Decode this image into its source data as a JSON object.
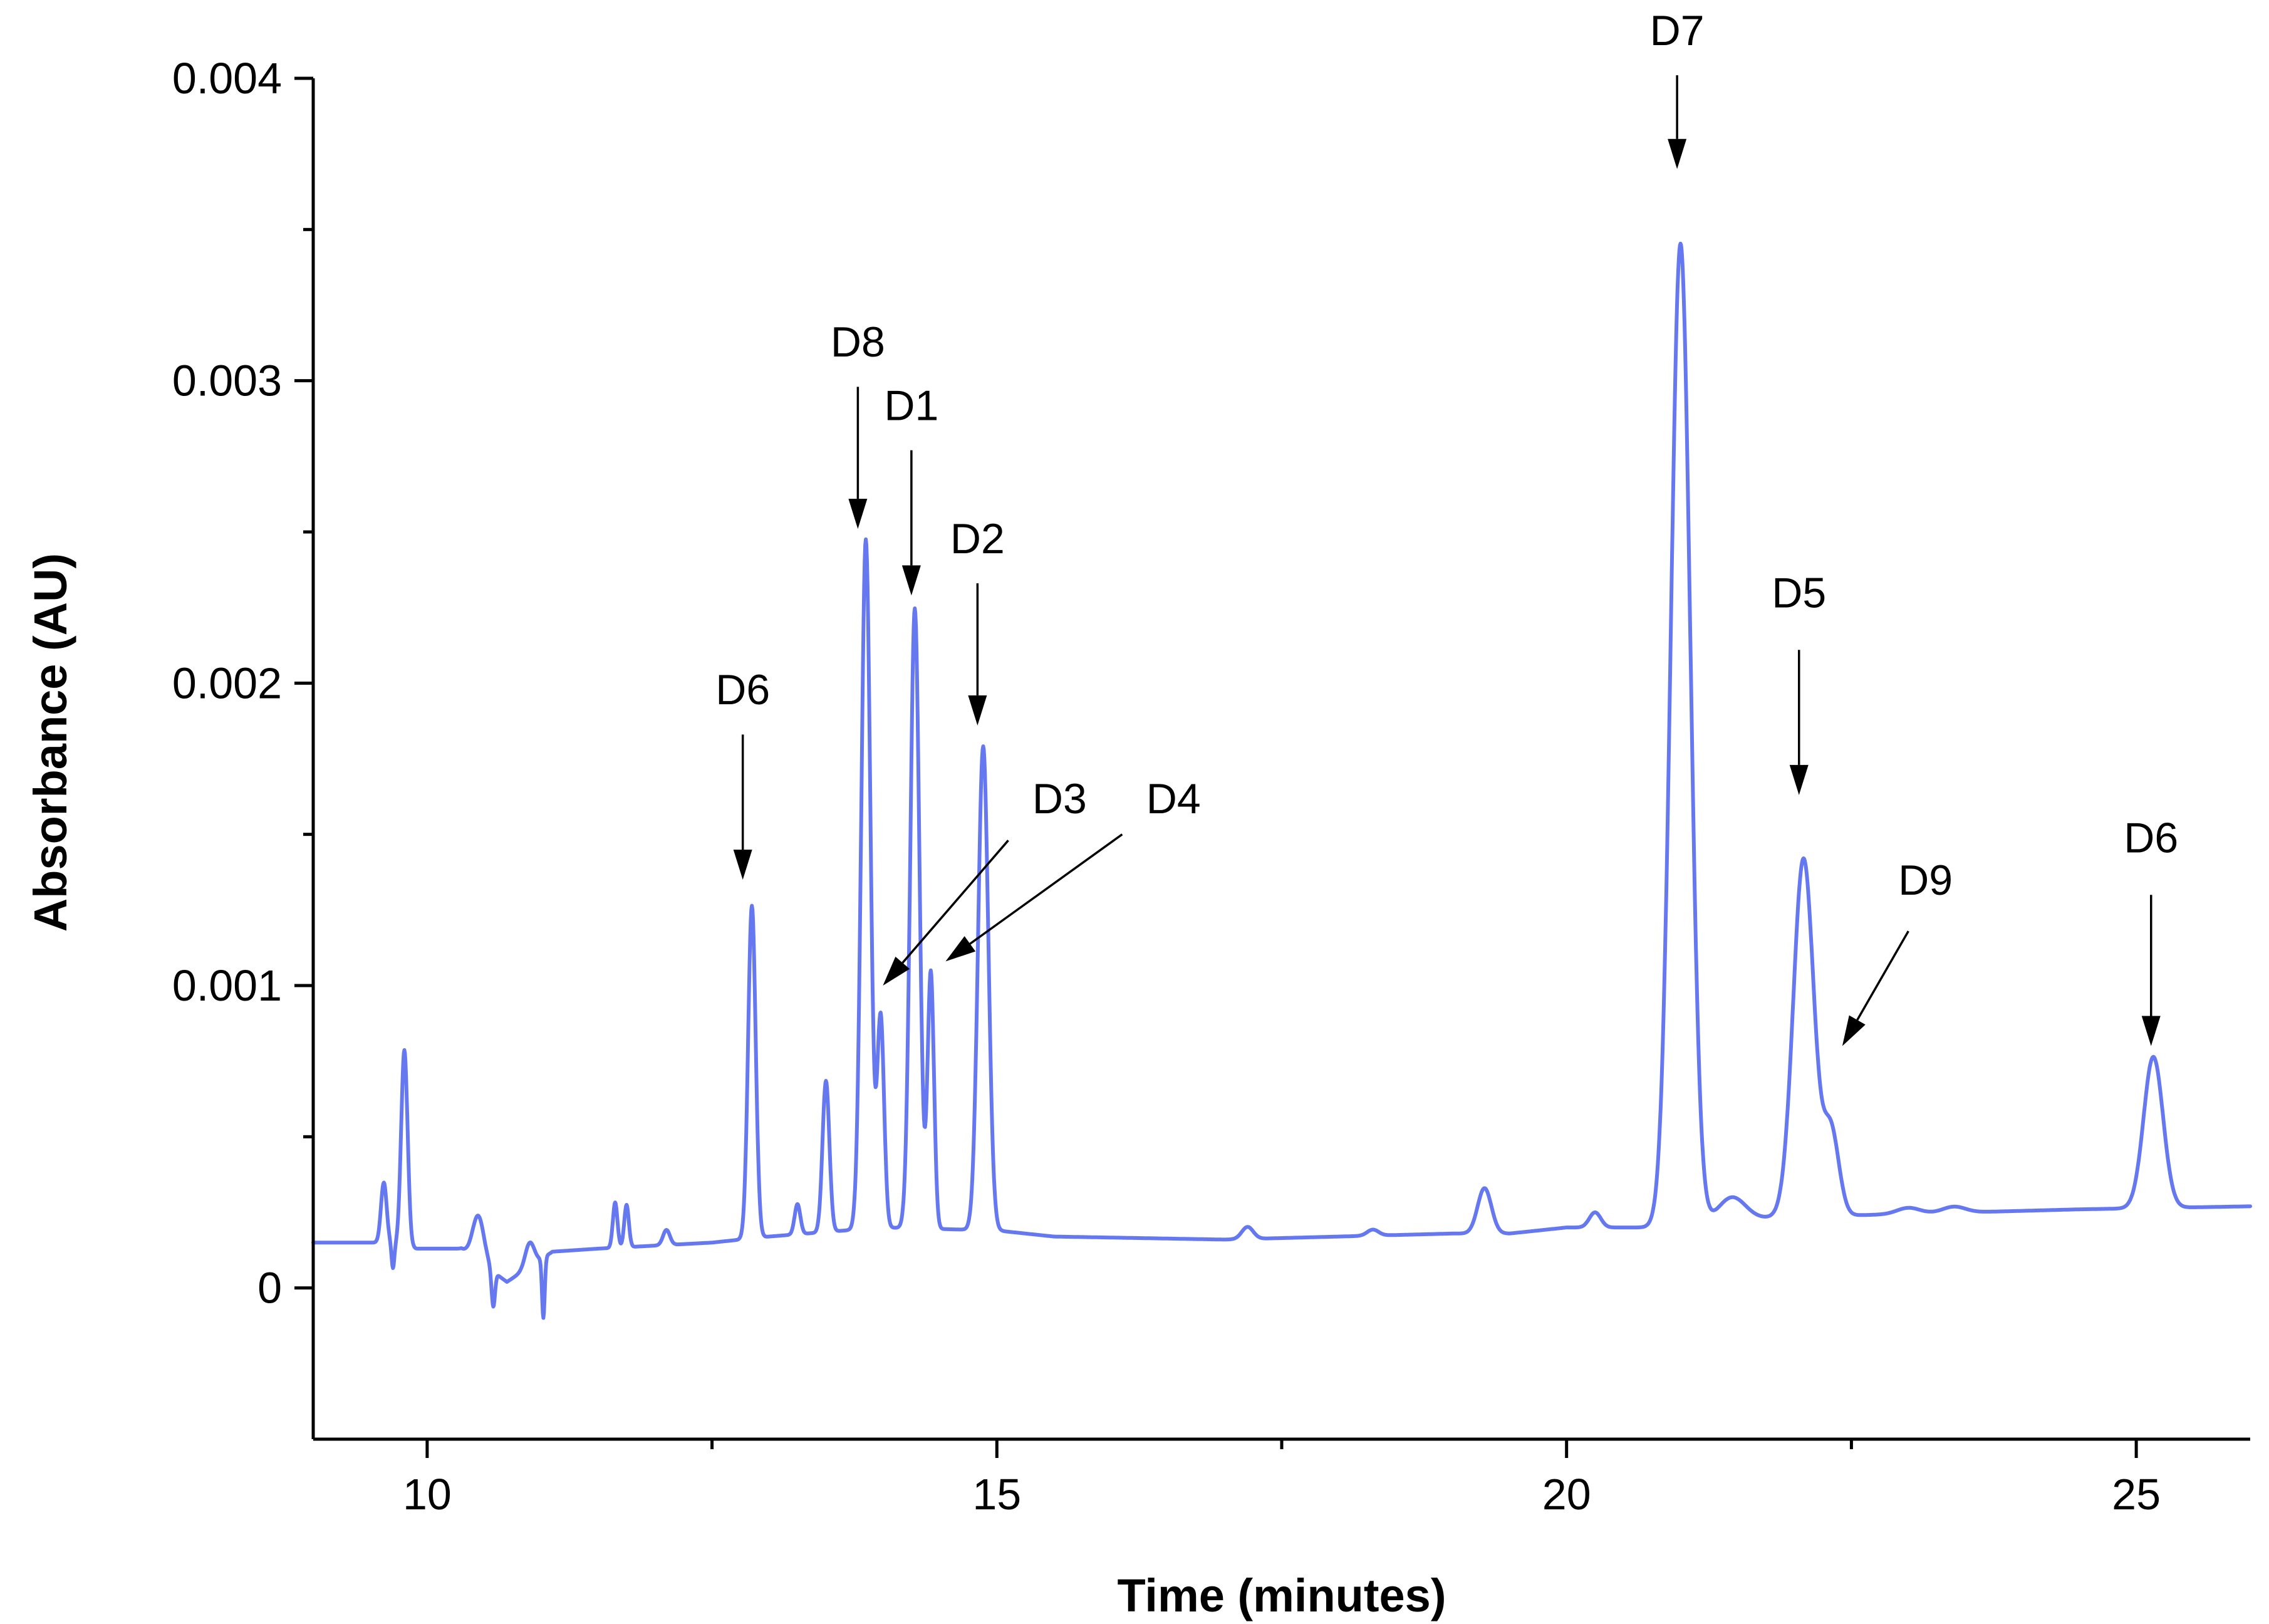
{
  "chart_data": {
    "type": "line",
    "xlabel": "Time (minutes)",
    "ylabel": "Absorbance (AU)",
    "xlim": [
      9,
      26
    ],
    "ylim": [
      -0.0005,
      0.004
    ],
    "x_ticks": [
      10,
      15,
      20,
      25
    ],
    "x_minor_ticks": [
      12.5,
      17.5,
      22.5
    ],
    "y_ticks": [
      0,
      0.001,
      0.002,
      0.003,
      0.004
    ],
    "y_tick_labels": [
      "0",
      "0.001",
      "0.002",
      "0.003",
      "0.004"
    ],
    "y_minor_ticks": [
      0.0005,
      0.0015,
      0.0025,
      0.0035
    ],
    "grid": false,
    "line_color": "#6678F0",
    "series": [
      {
        "baseline": [
          [
            9.0,
            0.00015
          ],
          [
            9.6,
            0.00015
          ],
          [
            9.9,
            0.00013
          ],
          [
            10.3,
            0.00013
          ],
          [
            10.7,
            2e-05
          ],
          [
            11.1,
            0.00012
          ],
          [
            11.5,
            0.00013
          ],
          [
            12.5,
            0.00015
          ],
          [
            13.0,
            0.00017
          ],
          [
            14.0,
            0.0002
          ],
          [
            15.0,
            0.00019
          ],
          [
            15.5,
            0.00017
          ],
          [
            17.0,
            0.00016
          ],
          [
            18.0,
            0.00017
          ],
          [
            19.0,
            0.00018
          ],
          [
            19.5,
            0.00018
          ],
          [
            20.0,
            0.0002
          ],
          [
            20.9,
            0.0002
          ],
          [
            22.0,
            0.00024
          ],
          [
            22.5,
            0.00024
          ],
          [
            24.5,
            0.00026
          ],
          [
            26.0,
            0.00027
          ]
        ],
        "peaks": [
          {
            "t": 9.62,
            "h": 0.0002,
            "w": 0.025
          },
          {
            "t": 9.7,
            "h": -8e-05,
            "w": 0.012
          },
          {
            "t": 9.8,
            "h": 0.00065,
            "w": 0.028
          },
          {
            "t": 10.45,
            "h": 0.00015,
            "w": 0.05
          },
          {
            "t": 10.58,
            "h": -0.00012,
            "w": 0.015
          },
          {
            "t": 10.9,
            "h": 8e-05,
            "w": 0.04
          },
          {
            "t": 11.02,
            "h": -0.0002,
            "w": 0.012
          },
          {
            "t": 11.65,
            "h": 0.00015,
            "w": 0.02
          },
          {
            "t": 11.75,
            "h": 0.00014,
            "w": 0.02
          },
          {
            "t": 12.1,
            "h": 5e-05,
            "w": 0.03
          },
          {
            "t": 12.85,
            "h": 0.0011,
            "w": 0.033
          },
          {
            "t": 13.25,
            "h": 0.0001,
            "w": 0.025
          },
          {
            "t": 13.5,
            "h": 0.0005,
            "w": 0.03
          },
          {
            "t": 13.85,
            "h": 0.00228,
            "w": 0.04
          },
          {
            "t": 13.98,
            "h": 0.0007,
            "w": 0.03
          },
          {
            "t": 14.28,
            "h": 0.00205,
            "w": 0.04
          },
          {
            "t": 14.42,
            "h": 0.00085,
            "w": 0.028
          },
          {
            "t": 14.88,
            "h": 0.0016,
            "w": 0.045
          },
          {
            "t": 17.2,
            "h": 4e-05,
            "w": 0.05
          },
          {
            "t": 18.3,
            "h": 2e-05,
            "w": 0.05
          },
          {
            "t": 19.28,
            "h": 0.00015,
            "w": 0.06
          },
          {
            "t": 20.25,
            "h": 5e-05,
            "w": 0.05
          },
          {
            "t": 21.0,
            "h": 0.00325,
            "w": 0.085
          },
          {
            "t": 21.45,
            "h": 8e-05,
            "w": 0.12
          },
          {
            "t": 22.08,
            "h": 0.00118,
            "w": 0.09
          },
          {
            "t": 22.32,
            "h": 0.00028,
            "w": 0.07
          },
          {
            "t": 23.0,
            "h": 2e-05,
            "w": 0.1
          },
          {
            "t": 23.4,
            "h": 2e-05,
            "w": 0.1
          },
          {
            "t": 25.15,
            "h": 0.0005,
            "w": 0.085
          }
        ]
      }
    ],
    "annotations": [
      {
        "label": "D6",
        "text_x": 12.77,
        "text_y": 0.00193,
        "tip_x": 12.77,
        "tip_y": 0.00135,
        "from_x": 12.77,
        "from_y": 0.00183
      },
      {
        "label": "D8",
        "text_x": 13.78,
        "text_y": 0.00308,
        "tip_x": 13.78,
        "tip_y": 0.00251,
        "from_x": 13.78,
        "from_y": 0.00298
      },
      {
        "label": "D1",
        "text_x": 14.25,
        "text_y": 0.00287,
        "tip_x": 14.25,
        "tip_y": 0.00229,
        "from_x": 14.25,
        "from_y": 0.00277
      },
      {
        "label": "D2",
        "text_x": 14.83,
        "text_y": 0.00243,
        "tip_x": 14.83,
        "tip_y": 0.00186,
        "from_x": 14.83,
        "from_y": 0.00233
      },
      {
        "label": "D3",
        "text_x": 15.55,
        "text_y": 0.00157,
        "tip_x": 14.0,
        "tip_y": 0.001,
        "from_x": 15.1,
        "from_y": 0.00148
      },
      {
        "label": "D4",
        "text_x": 16.55,
        "text_y": 0.00157,
        "tip_x": 14.55,
        "tip_y": 0.00108,
        "from_x": 16.1,
        "from_y": 0.0015
      },
      {
        "label": "D7",
        "text_x": 20.97,
        "text_y": 0.00411,
        "tip_x": 20.97,
        "tip_y": 0.0037,
        "from_x": 20.97,
        "from_y": 0.00401
      },
      {
        "label": "D5",
        "text_x": 22.04,
        "text_y": 0.00225,
        "tip_x": 22.04,
        "tip_y": 0.00163,
        "from_x": 22.04,
        "from_y": 0.00211
      },
      {
        "label": "D9",
        "text_x": 23.15,
        "text_y": 0.0013,
        "tip_x": 22.42,
        "tip_y": 0.0008,
        "from_x": 23.0,
        "from_y": 0.00118
      },
      {
        "label": "D6",
        "text_x": 25.13,
        "text_y": 0.00144,
        "tip_x": 25.13,
        "tip_y": 0.0008,
        "from_x": 25.13,
        "from_y": 0.0013
      }
    ]
  }
}
